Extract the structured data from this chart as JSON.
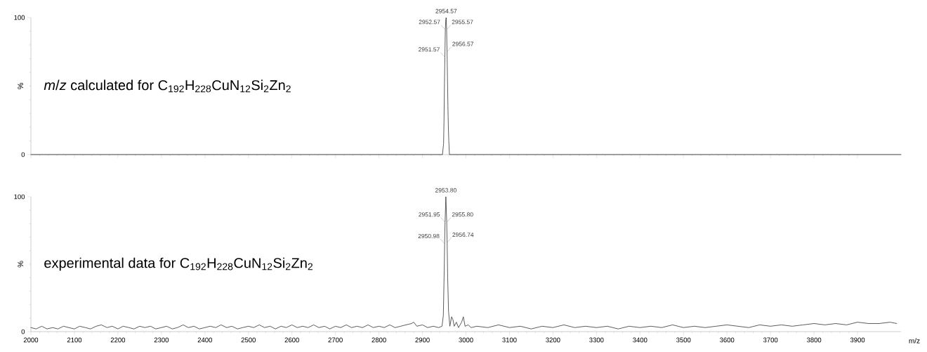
{
  "chart_data": [
    {
      "type": "line",
      "title": "*m*/*z* calculated for C$_{192}$H$_{228}$CuN$_{12}$Si$_{2}$Zn$_{2}$",
      "ylabel": "%",
      "color": "#333333",
      "tick_labels": "y",
      "x": [
        2000,
        2946,
        2948.57,
        2949.57,
        2950.57,
        2951.57,
        2952.57,
        2953.57,
        2954.57,
        2955.57,
        2956.57,
        2957.57,
        2958.57,
        2959.57,
        2960.57,
        2962,
        4000
      ],
      "values": [
        0,
        0,
        8,
        25,
        52,
        71,
        91,
        98,
        100,
        91,
        75,
        55,
        35,
        20,
        10,
        0,
        0
      ],
      "xlim": [
        2000,
        4000
      ],
      "ylim": [
        0,
        100
      ],
      "yticks": [
        0,
        100
      ],
      "xticks": [
        2000,
        2100,
        2200,
        2300,
        2400,
        2500,
        2600,
        2700,
        2800,
        2900,
        3000,
        3100,
        3200,
        3300,
        3400,
        3500,
        3600,
        3700,
        3800,
        3900
      ],
      "annotations": [
        {
          "text": "2954.57",
          "x": 2954.57,
          "y": 100
        },
        {
          "text": "2952.57",
          "x": 2952.57,
          "y": 91
        },
        {
          "text": "2955.57",
          "x": 2955.57,
          "y": 91
        },
        {
          "text": "2951.57",
          "x": 2951.57,
          "y": 71
        },
        {
          "text": "2956.57",
          "x": 2956.57,
          "y": 75
        }
      ]
    },
    {
      "type": "line",
      "title": "experimental data for C$_{192}$H$_{228}$CuN$_{12}$Si$_{2}$Zn$_{2}$",
      "ylabel": "%",
      "xlabel": "m/z",
      "color": "#333333",
      "x": [
        2000,
        2012,
        2025,
        2037,
        2050,
        2062,
        2075,
        2087,
        2100,
        2112,
        2125,
        2137,
        2150,
        2162,
        2175,
        2187,
        2200,
        2212,
        2225,
        2237,
        2250,
        2262,
        2275,
        2287,
        2300,
        2312,
        2325,
        2337,
        2350,
        2362,
        2375,
        2387,
        2400,
        2412,
        2425,
        2437,
        2450,
        2462,
        2475,
        2487,
        2500,
        2512,
        2525,
        2537,
        2550,
        2562,
        2575,
        2587,
        2600,
        2612,
        2625,
        2637,
        2650,
        2662,
        2675,
        2687,
        2700,
        2712,
        2725,
        2737,
        2750,
        2762,
        2775,
        2787,
        2800,
        2812,
        2825,
        2837,
        2850,
        2862,
        2875,
        2880,
        2887,
        2900,
        2912,
        2925,
        2937,
        2945,
        2948,
        2950,
        2950.98,
        2951.95,
        2953.8,
        2955.8,
        2956.74,
        2958,
        2960,
        2963,
        2967,
        2970,
        2973,
        2978,
        2983,
        2990,
        2994,
        2998,
        3005,
        3012,
        3025,
        3050,
        3075,
        3100,
        3125,
        3150,
        3175,
        3200,
        3225,
        3250,
        3275,
        3300,
        3325,
        3350,
        3375,
        3400,
        3425,
        3450,
        3475,
        3500,
        3525,
        3550,
        3575,
        3600,
        3625,
        3650,
        3675,
        3700,
        3725,
        3750,
        3775,
        3800,
        3825,
        3850,
        3875,
        3900,
        3925,
        3950,
        3975,
        3990
      ],
      "values": [
        3,
        2,
        4,
        2,
        3,
        2,
        4,
        3,
        2,
        4,
        3,
        2,
        4,
        5,
        3,
        4,
        2,
        4,
        3,
        2,
        4,
        3,
        4,
        2,
        3,
        4,
        2,
        3,
        5,
        3,
        4,
        2,
        3,
        4,
        3,
        5,
        3,
        4,
        2,
        3,
        4,
        3,
        5,
        3,
        4,
        2,
        4,
        3,
        5,
        3,
        4,
        3,
        5,
        3,
        4,
        2,
        4,
        3,
        5,
        3,
        4,
        3,
        5,
        3,
        4,
        3,
        5,
        3,
        4,
        5,
        6,
        7,
        4,
        5,
        3,
        4,
        3,
        4,
        12,
        45,
        65,
        81,
        100,
        81,
        66,
        40,
        15,
        4,
        11,
        9,
        4,
        7,
        3,
        7,
        11,
        4,
        5,
        3,
        4,
        3,
        5,
        3,
        4,
        2,
        4,
        3,
        5,
        3,
        4,
        3,
        4,
        2,
        4,
        3,
        4,
        3,
        5,
        3,
        4,
        3,
        4,
        5,
        4,
        3,
        5,
        4,
        5,
        4,
        5,
        6,
        5,
        6,
        5,
        7,
        6,
        6,
        7,
        6
      ],
      "xlim": [
        2000,
        4000
      ],
      "ylim": [
        0,
        100
      ],
      "yticks": [
        0,
        100
      ],
      "xticks": [
        2000,
        2100,
        2200,
        2300,
        2400,
        2500,
        2600,
        2700,
        2800,
        2900,
        3000,
        3100,
        3200,
        3300,
        3400,
        3500,
        3600,
        3700,
        3800,
        3900
      ],
      "annotations": [
        {
          "text": "2953.80",
          "x": 2953.8,
          "y": 100
        },
        {
          "text": "2951.95",
          "x": 2951.95,
          "y": 81
        },
        {
          "text": "2955.80",
          "x": 2955.8,
          "y": 81
        },
        {
          "text": "2950.98",
          "x": 2950.98,
          "y": 65
        },
        {
          "text": "2956.74",
          "x": 2956.74,
          "y": 66
        }
      ]
    }
  ]
}
